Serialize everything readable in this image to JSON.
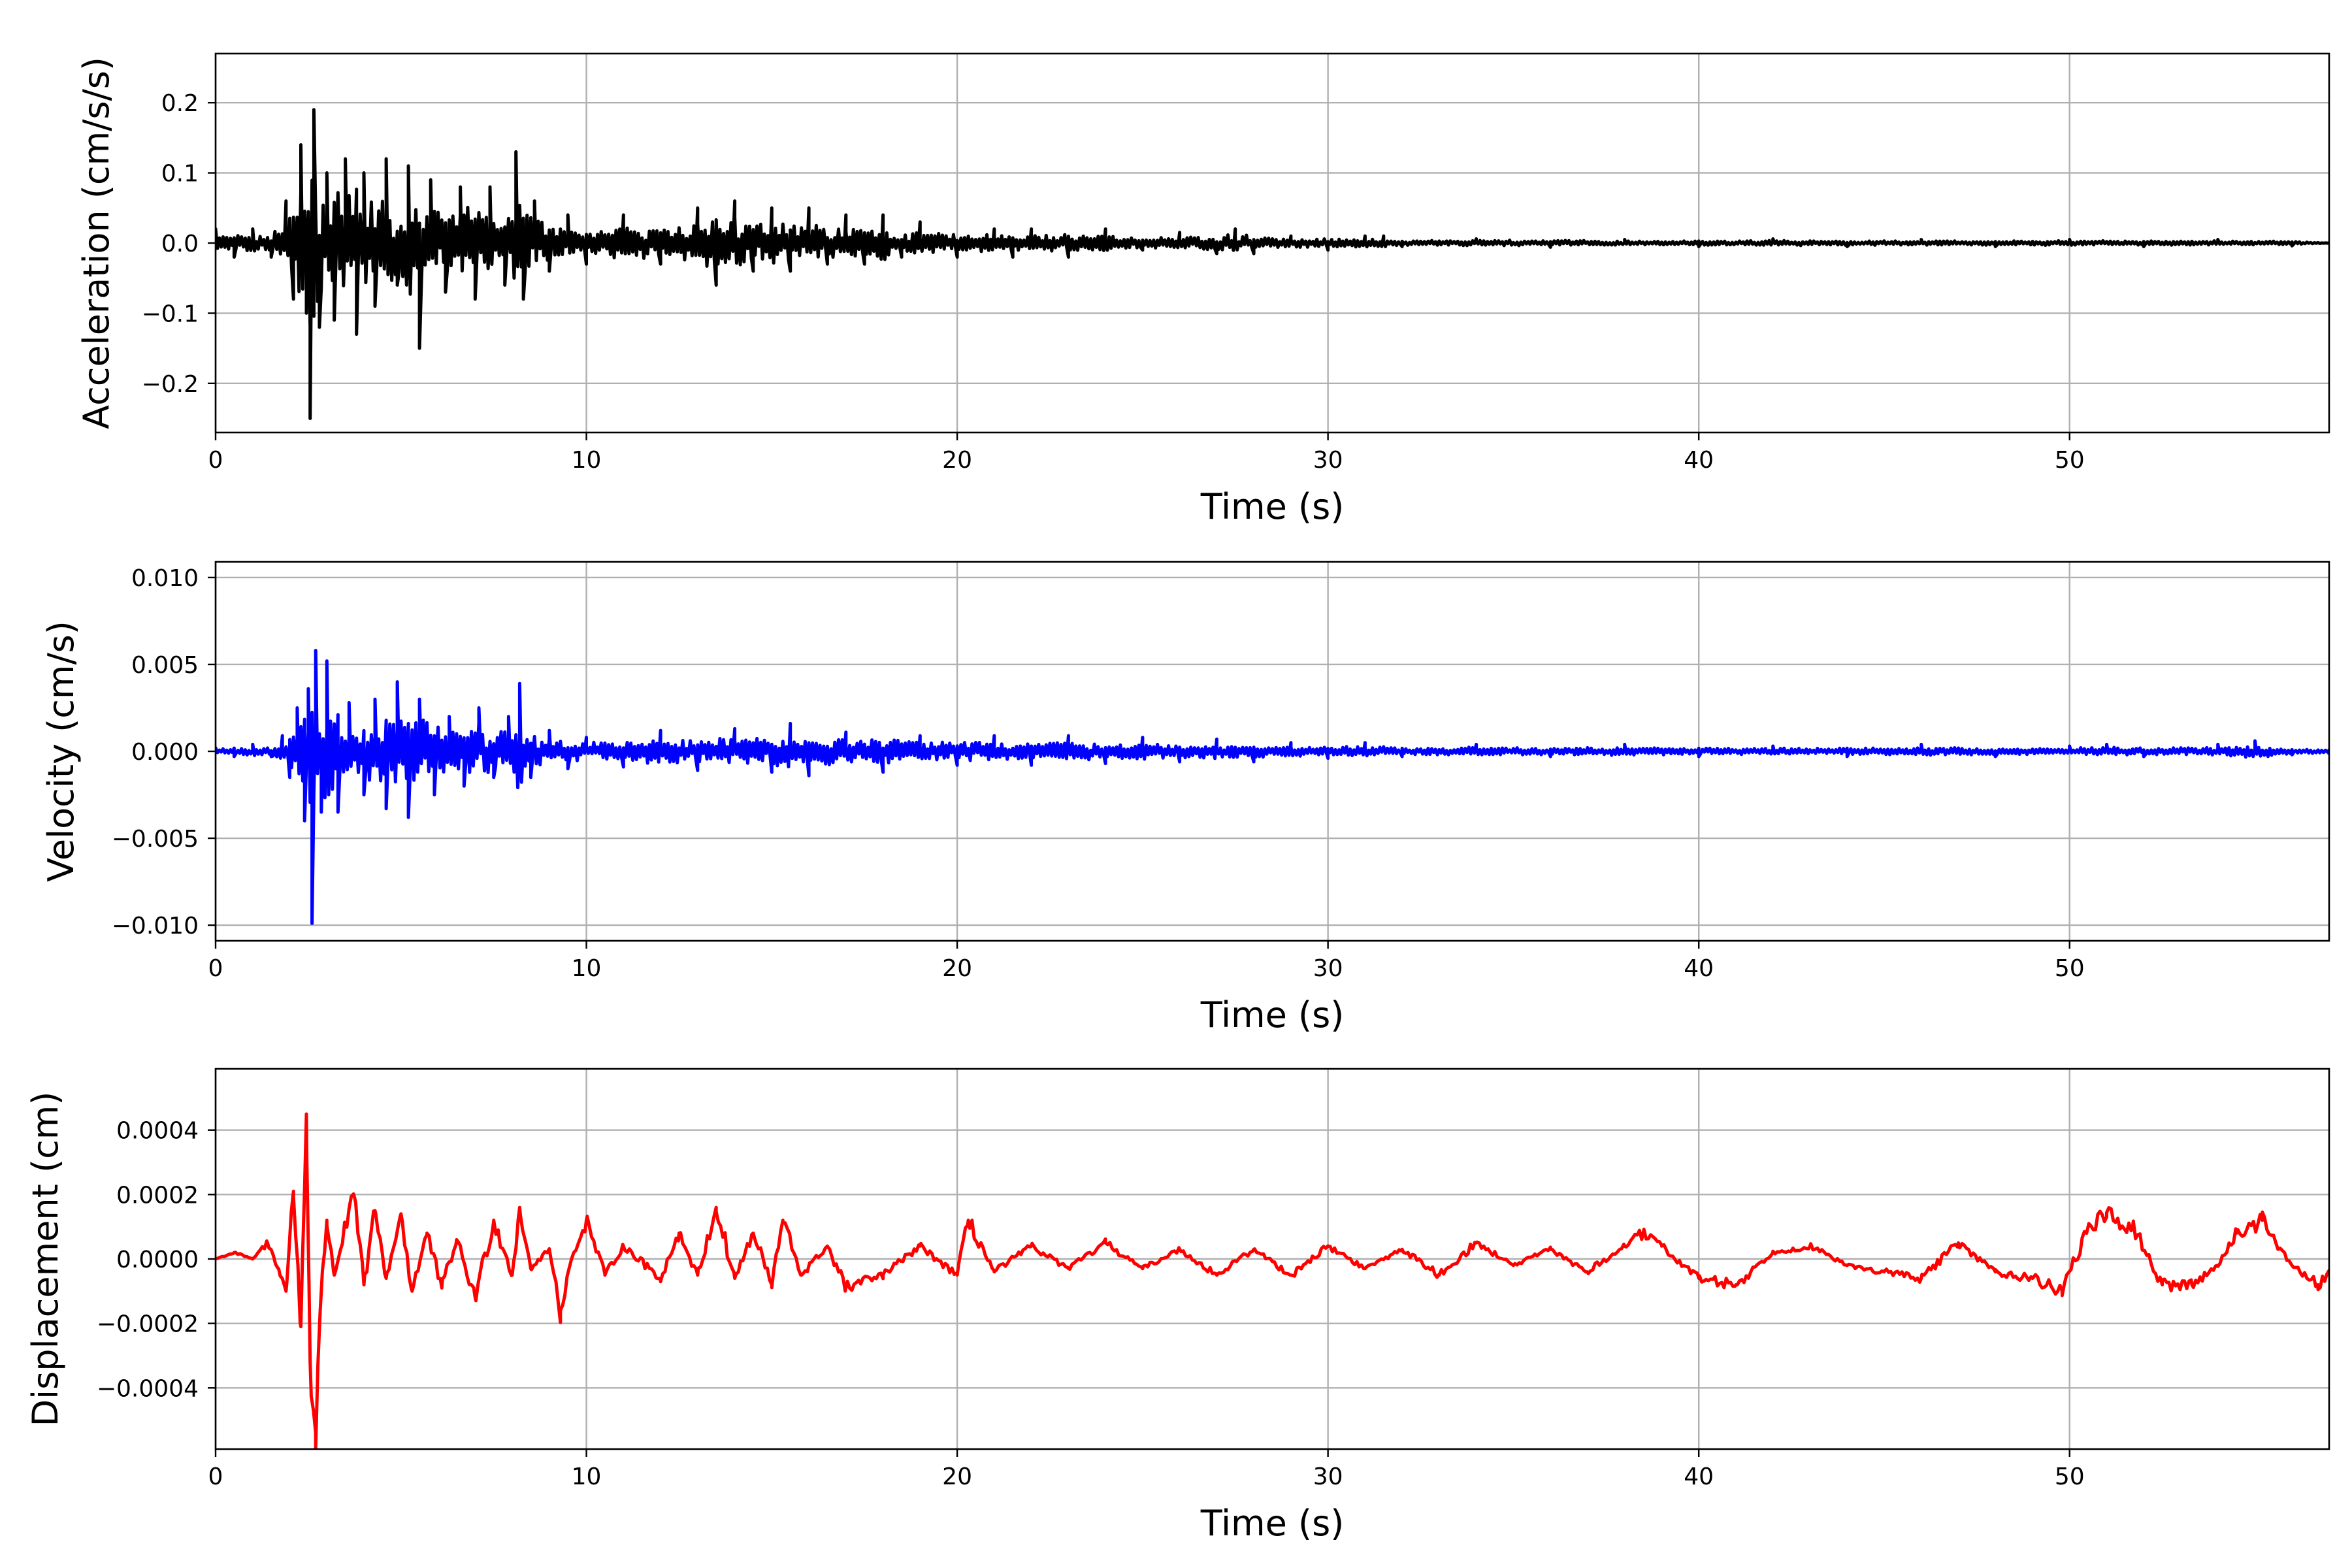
{
  "figure": {
    "grid": true,
    "panels": [
      {
        "id": "acceleration",
        "color": "#000000",
        "xlabel": "Time (s)",
        "ylabel": "Acceleration (cm/s/s)",
        "xlim": [
          0,
          57
        ],
        "ylim": [
          -0.27,
          0.27
        ],
        "xticks": [
          0,
          10,
          20,
          30,
          40,
          50
        ],
        "xtick_labels": [
          "0",
          "10",
          "20",
          "30",
          "40",
          "50"
        ],
        "yticks": [
          0.2,
          0.1,
          0.0,
          -0.1,
          -0.2
        ],
        "ytick_labels": [
          "0.2",
          "0.1",
          "0.0",
          "−0.1",
          "−0.2"
        ]
      },
      {
        "id": "velocity",
        "color": "#0000ff",
        "xlabel": "Time (s)",
        "ylabel": "Velocity (cm/s)",
        "xlim": [
          0,
          57
        ],
        "ylim": [
          -0.0109,
          0.0109
        ],
        "xticks": [
          0,
          10,
          20,
          30,
          40,
          50
        ],
        "xtick_labels": [
          "0",
          "10",
          "20",
          "30",
          "40",
          "50"
        ],
        "yticks": [
          0.01,
          0.005,
          0.0,
          -0.005,
          -0.01
        ],
        "ytick_labels": [
          "0.010",
          "0.005",
          "0.000",
          "−0.005",
          "−0.010"
        ]
      },
      {
        "id": "displacement",
        "color": "#ff0000",
        "xlabel": "Time (s)",
        "ylabel": "Displacement (cm)",
        "xlim": [
          0,
          57
        ],
        "ylim": [
          -0.00059,
          0.00059
        ],
        "xticks": [
          0,
          10,
          20,
          30,
          40,
          50
        ],
        "xtick_labels": [
          "0",
          "10",
          "20",
          "30",
          "40",
          "50"
        ],
        "yticks": [
          0.0004,
          0.0002,
          0.0,
          -0.0002,
          -0.0004
        ],
        "ytick_labels": [
          "0.0004",
          "0.0002",
          "0.0000",
          "−0.0002",
          "−0.0004"
        ]
      }
    ]
  },
  "chart_data": [
    {
      "type": "line",
      "xlabel": "Time (s)",
      "ylabel": "Acceleration (cm/s/s)",
      "xlim": [
        0,
        57
      ],
      "ylim": [
        -0.27,
        0.27
      ],
      "grid": true,
      "series": [
        {
          "color": "#000000",
          "x": [
            0,
            0.5,
            1.0,
            1.5,
            1.9,
            2.1,
            2.3,
            2.45,
            2.55,
            2.65,
            2.8,
            3.0,
            3.2,
            3.5,
            3.8,
            4.0,
            4.3,
            4.6,
            4.9,
            5.2,
            5.5,
            5.8,
            6.2,
            6.6,
            7.0,
            7.4,
            7.8,
            8.1,
            8.3,
            8.6,
            9.0,
            9.5,
            10,
            11,
            12,
            13,
            13.5,
            14,
            14.5,
            15,
            15.5,
            16,
            16.5,
            17,
            17.5,
            18,
            18.5,
            19,
            20,
            21,
            21.5,
            22,
            23,
            24,
            25,
            26,
            27,
            27.5,
            28,
            29,
            30,
            31,
            31.5,
            32,
            34,
            36,
            38,
            40,
            42,
            44,
            46,
            48,
            50,
            52,
            54,
            56,
            57
          ],
          "y": [
            0.02,
            -0.02,
            0.02,
            -0.02,
            0.06,
            -0.08,
            0.14,
            -0.1,
            -0.25,
            0.19,
            -0.12,
            0.1,
            -0.11,
            0.12,
            -0.13,
            0.1,
            -0.09,
            0.12,
            -0.06,
            0.11,
            -0.15,
            0.09,
            -0.07,
            0.08,
            -0.08,
            0.08,
            -0.06,
            0.13,
            -0.08,
            0.06,
            -0.04,
            0.04,
            -0.03,
            0.04,
            -0.03,
            0.05,
            -0.06,
            0.06,
            -0.04,
            0.05,
            -0.04,
            0.05,
            -0.03,
            0.04,
            -0.03,
            0.04,
            -0.02,
            0.03,
            -0.02,
            0.02,
            -0.02,
            0.02,
            -0.02,
            0.02,
            -0.01,
            0.015,
            -0.015,
            0.02,
            -0.015,
            0.01,
            -0.01,
            0.01,
            0.01,
            -0.005,
            0.006,
            -0.006,
            0.005,
            -0.005,
            0.006,
            -0.005,
            0.005,
            -0.005,
            0.005,
            -0.005,
            0.005,
            -0.004,
            0.0
          ]
        }
      ]
    },
    {
      "type": "line",
      "xlabel": "Time (s)",
      "ylabel": "Velocity (cm/s)",
      "xlim": [
        0,
        57
      ],
      "ylim": [
        -0.0109,
        0.0109
      ],
      "grid": true,
      "series": [
        {
          "color": "#0000ff",
          "x": [
            0,
            0.5,
            1.0,
            1.5,
            1.8,
            2.0,
            2.2,
            2.4,
            2.5,
            2.6,
            2.7,
            2.85,
            3.0,
            3.3,
            3.6,
            4.0,
            4.3,
            4.6,
            4.9,
            5.2,
            5.5,
            5.9,
            6.3,
            6.7,
            7.1,
            7.5,
            7.9,
            8.2,
            8.5,
            9.0,
            9.5,
            10,
            11,
            12,
            13,
            14,
            15,
            15.5,
            16,
            17,
            18,
            19,
            20,
            21,
            22,
            23,
            24,
            25,
            26,
            27,
            28,
            29,
            30,
            31,
            32,
            34,
            36,
            38,
            40,
            42,
            44,
            46,
            48,
            50,
            51,
            52,
            54,
            55,
            56,
            57
          ],
          "y": [
            0.0002,
            -0.0003,
            0.0004,
            -0.0003,
            0.0009,
            -0.0015,
            0.0025,
            -0.004,
            0.0036,
            -0.0099,
            0.0058,
            -0.0035,
            0.0052,
            -0.0035,
            0.0028,
            -0.0025,
            0.003,
            -0.0033,
            0.004,
            -0.0038,
            0.003,
            -0.0025,
            0.002,
            -0.002,
            0.0025,
            -0.0015,
            0.002,
            0.0039,
            -0.0015,
            0.0012,
            -0.001,
            0.0008,
            -0.0009,
            0.0012,
            -0.0011,
            0.0013,
            -0.0012,
            0.0016,
            -0.0014,
            0.0011,
            -0.0012,
            0.0009,
            -0.0008,
            0.0009,
            -0.0008,
            0.0009,
            -0.0007,
            0.0008,
            -0.0006,
            0.0007,
            -0.0006,
            0.0005,
            -0.0004,
            0.0005,
            -0.0003,
            0.0004,
            -0.0003,
            0.0004,
            -0.0003,
            0.0003,
            -0.0003,
            0.0004,
            -0.0003,
            0.0003,
            0.0004,
            -0.0003,
            0.0004,
            0.0006,
            -0.0002,
            -0.0002
          ]
        }
      ]
    },
    {
      "type": "line",
      "xlabel": "Time (s)",
      "ylabel": "Displacement (cm)",
      "xlim": [
        0,
        57
      ],
      "ylim": [
        -0.00059,
        0.00059
      ],
      "grid": true,
      "series": [
        {
          "color": "#ff0000",
          "x": [
            0,
            0.5,
            1.0,
            1.4,
            1.7,
            1.9,
            2.1,
            2.3,
            2.45,
            2.55,
            2.7,
            2.85,
            3.0,
            3.2,
            3.5,
            3.75,
            4.0,
            4.3,
            4.6,
            5.0,
            5.3,
            5.7,
            6.1,
            6.5,
            7.0,
            7.5,
            8.0,
            8.2,
            8.5,
            9.0,
            9.3,
            9.6,
            10.0,
            10.5,
            11.0,
            12.0,
            12.5,
            13.0,
            13.5,
            14.0,
            14.5,
            15.0,
            15.3,
            15.8,
            16.5,
            17.0,
            18.0,
            19.0,
            20.0,
            20.3,
            21.0,
            22.0,
            23.0,
            24.0,
            25.0,
            26.0,
            27.0,
            28.0,
            29.0,
            30.0,
            31.0,
            32.0,
            33.0,
            34.0,
            35.0,
            36.0,
            37.0,
            38.0,
            38.5,
            39.0,
            40.0,
            41.0,
            42.0,
            43.0,
            44.0,
            45.0,
            46.0,
            47.0,
            48.0,
            49.0,
            49.8,
            50.5,
            51.0,
            51.7,
            52.5,
            53.3,
            54.0,
            54.5,
            55.2,
            56.0,
            56.7,
            57.0
          ],
          "y": [
            0.0,
            2e-05,
            0.0,
            5e-05,
            -3e-05,
            -0.0001,
            0.00021,
            -0.00021,
            0.00045,
            -0.00032,
            -0.00054,
            -0.0001,
            0.00012,
            -5e-05,
            0.0001,
            0.00019,
            -8e-05,
            0.00015,
            -6e-05,
            0.00014,
            -0.0001,
            8e-05,
            -9e-05,
            6e-05,
            -0.00012,
            0.00012,
            -5e-05,
            0.00016,
            -3e-05,
            3e-05,
            -0.00016,
            0.0,
            0.00012,
            -5e-05,
            4e-05,
            -6e-05,
            8e-05,
            -5e-05,
            0.00016,
            -6e-05,
            8e-05,
            -8e-05,
            0.00012,
            -5e-05,
            4e-05,
            -9e-05,
            -5e-05,
            4e-05,
            -5e-05,
            0.00012,
            -4e-05,
            4e-05,
            -3e-05,
            5e-05,
            -3e-05,
            3e-05,
            -5e-05,
            3e-05,
            -5e-05,
            4e-05,
            -3e-05,
            3e-05,
            -5e-05,
            5e-05,
            -2e-05,
            3e-05,
            -4e-05,
            4e-05,
            8e-05,
            4e-05,
            -6e-05,
            -8e-05,
            2e-05,
            4e-05,
            -2e-05,
            -4e-05,
            -6e-05,
            5e-05,
            -4e-05,
            -6e-05,
            -0.0001,
            0.0001,
            0.00013,
            0.0001,
            -8e-05,
            -8e-05,
            -2e-05,
            8e-05,
            0.00012,
            -2e-05,
            -8e-05,
            -4e-05
          ]
        }
      ]
    }
  ]
}
